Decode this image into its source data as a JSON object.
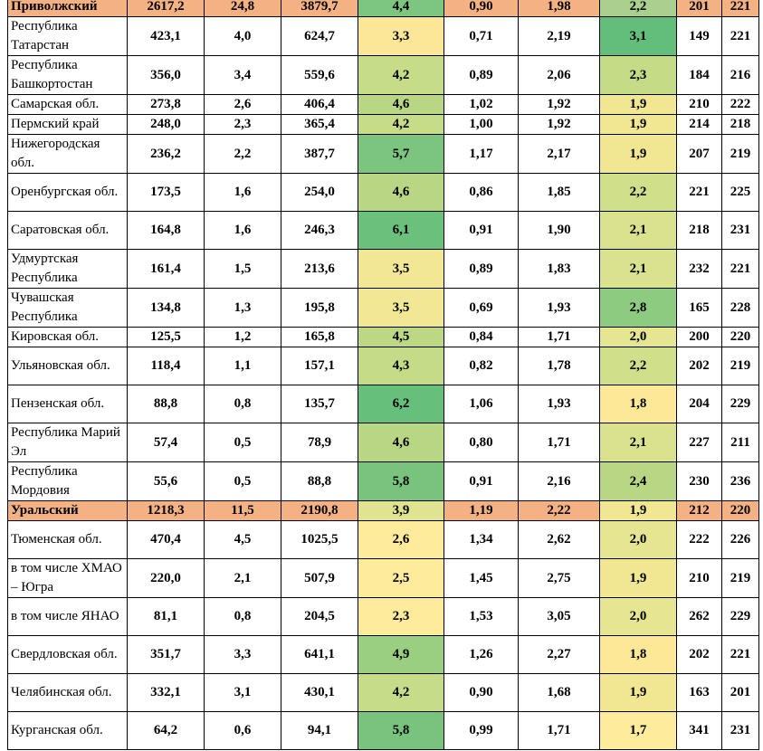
{
  "colors": {
    "region_row": "#f4b183",
    "heat_low": "#ffeb9c",
    "heat_high": "#63be7b"
  },
  "rows": [
    {
      "type": "region",
      "name": "Приволжский",
      "v": [
        "2617,2",
        "24,8",
        "3879,7",
        "4,4",
        "0,90",
        "1,98",
        "2,2",
        "201",
        "221"
      ],
      "c1": "#7dc67f",
      "c2": "#a9d08e"
    },
    {
      "type": "entry",
      "lines": 2,
      "name": "Республика Татарстан",
      "v": [
        "423,1",
        "4,0",
        "624,7",
        "3,3",
        "0,71",
        "2,19",
        "3,1",
        "149",
        "221"
      ],
      "c1": "#fce798",
      "c2": "#63be7b"
    },
    {
      "type": "entry",
      "lines": 2,
      "name": "Республика Башкортостан",
      "v": [
        "356,0",
        "3,4",
        "559,6",
        "4,2",
        "0,89",
        "2,06",
        "2,3",
        "184",
        "216"
      ],
      "c1": "#c7dc88",
      "c2": "#c5dc86"
    },
    {
      "type": "entry",
      "lines": 1,
      "name": "Самарская обл.",
      "v": [
        "273,8",
        "2,6",
        "406,4",
        "4,6",
        "1,02",
        "1,92",
        "1,9",
        "210",
        "222"
      ],
      "c1": "#b9d684",
      "c2": "#f1e793"
    },
    {
      "type": "entry",
      "lines": 1,
      "name": "Пермский край",
      "v": [
        "248,0",
        "2,3",
        "365,4",
        "4,2",
        "1,00",
        "1,92",
        "1,9",
        "214",
        "218"
      ],
      "c1": "#c7dc88",
      "c2": "#f1e793"
    },
    {
      "type": "entry",
      "lines": 2,
      "name": "Нижегородская обл.",
      "v": [
        "236,2",
        "2,2",
        "387,7",
        "5,7",
        "1,17",
        "2,17",
        "1,9",
        "207",
        "219"
      ],
      "c1": "#7cc57e",
      "c2": "#f1e793"
    },
    {
      "type": "entry",
      "lines": 2,
      "name": "Оренбургская обл.",
      "v": [
        "173,5",
        "1,6",
        "254,0",
        "4,6",
        "0,86",
        "1,85",
        "2,2",
        "221",
        "225"
      ],
      "c1": "#b9d684",
      "c2": "#d0df8a"
    },
    {
      "type": "entry",
      "lines": 2,
      "name": "Саратовская обл.",
      "v": [
        "164,8",
        "1,6",
        "246,3",
        "6,1",
        "0,91",
        "1,90",
        "2,1",
        "218",
        "231"
      ],
      "c1": "#6bc07c",
      "c2": "#dbe28e"
    },
    {
      "type": "entry",
      "lines": 2,
      "name": "Удмуртская Республика",
      "v": [
        "161,4",
        "1,5",
        "213,6",
        "3,5",
        "0,89",
        "1,83",
        "2,1",
        "232",
        "221"
      ],
      "c1": "#f2e794",
      "c2": "#dbe28e"
    },
    {
      "type": "entry",
      "lines": 2,
      "name": "Чувашская Республика",
      "v": [
        "134,8",
        "1,3",
        "195,8",
        "3,5",
        "0,69",
        "1,93",
        "2,8",
        "165",
        "228"
      ],
      "c1": "#f2e794",
      "c2": "#8ccb80"
    },
    {
      "type": "entry",
      "lines": 1,
      "name": "Кировская обл.",
      "v": [
        "125,5",
        "1,2",
        "165,8",
        "4,5",
        "0,84",
        "1,71",
        "2,0",
        "200",
        "220"
      ],
      "c1": "#bdd885",
      "c2": "#e6e591"
    },
    {
      "type": "entry",
      "lines": 2,
      "name": "Ульяновская обл.",
      "v": [
        "118,4",
        "1,1",
        "157,1",
        "4,3",
        "0,82",
        "1,78",
        "2,2",
        "202",
        "219"
      ],
      "c1": "#c4db87",
      "c2": "#d0df8a"
    },
    {
      "type": "entry",
      "lines": 2,
      "name": "Пензенская обл.",
      "v": [
        "88,8",
        "0,8",
        "135,7",
        "6,2",
        "1,06",
        "1,93",
        "1,8",
        "204",
        "229"
      ],
      "c1": "#66bf7b",
      "c2": "#fce897"
    },
    {
      "type": "entry",
      "lines": 2,
      "name": "Республика Марий Эл",
      "v": [
        "57,4",
        "0,5",
        "78,9",
        "4,6",
        "0,80",
        "1,71",
        "2,1",
        "227",
        "211"
      ],
      "c1": "#b9d684",
      "c2": "#dbe28e"
    },
    {
      "type": "entry",
      "lines": 2,
      "name": "Республика Мордовия",
      "v": [
        "55,6",
        "0,5",
        "88,8",
        "5,8",
        "0,91",
        "2,16",
        "2,4",
        "230",
        "236"
      ],
      "c1": "#78c47d",
      "c2": "#b9d684"
    },
    {
      "type": "region",
      "name": "Уральский",
      "v": [
        "1218,3",
        "11,5",
        "2190,8",
        "3,9",
        "1,19",
        "2,22",
        "1,9",
        "212",
        "220"
      ],
      "c1": "#e0e38f",
      "c2": "#f1e793"
    },
    {
      "type": "entry",
      "lines": 2,
      "name": "Тюменская обл.",
      "v": [
        "470,4",
        "4,5",
        "1025,5",
        "2,6",
        "1,34",
        "2,62",
        "2,0",
        "222",
        "226"
      ],
      "c1": "#ffeb9c",
      "c2": "#e6e591"
    },
    {
      "type": "entry",
      "lines": 2,
      "name": "в том числе ХМАО – Югра",
      "v": [
        "220,0",
        "2,1",
        "507,9",
        "2,5",
        "1,45",
        "2,75",
        "1,9",
        "210",
        "219"
      ],
      "c1": "#ffeb9c",
      "c2": "#f1e793"
    },
    {
      "type": "entry",
      "lines": 2,
      "name": "в том числе ЯНАО",
      "v": [
        "81,1",
        "0,8",
        "204,5",
        "2,3",
        "1,53",
        "3,05",
        "2,0",
        "262",
        "229"
      ],
      "c1": "#ffeb9c",
      "c2": "#e6e591"
    },
    {
      "type": "entry",
      "lines": 2,
      "name": "Свердловская обл.",
      "v": [
        "351,7",
        "3,3",
        "641,1",
        "4,9",
        "1,26",
        "2,27",
        "1,8",
        "202",
        "221"
      ],
      "c1": "#9acf82",
      "c2": "#fce897"
    },
    {
      "type": "entry",
      "lines": 2,
      "name": "Челябинская обл.",
      "v": [
        "332,1",
        "3,1",
        "430,1",
        "4,2",
        "0,90",
        "1,68",
        "1,9",
        "163",
        "201"
      ],
      "c1": "#c7dc88",
      "c2": "#f1e793"
    },
    {
      "type": "entry",
      "lines": 2,
      "name": "Курганская обл.",
      "v": [
        "64,2",
        "0,6",
        "94,1",
        "5,8",
        "0,99",
        "1,71",
        "1,7",
        "341",
        "231"
      ],
      "c1": "#78c47d",
      "c2": "#ffeb9c"
    }
  ]
}
